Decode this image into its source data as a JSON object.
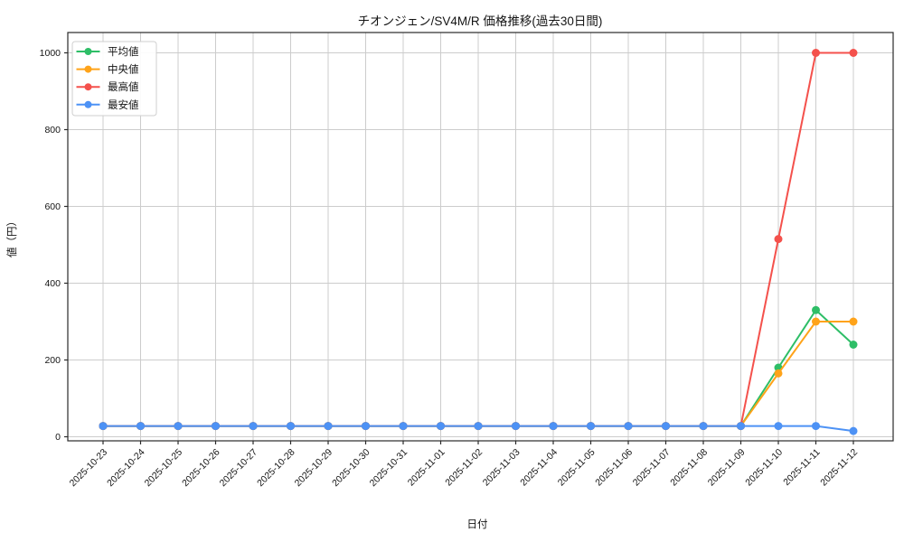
{
  "chart_data": {
    "type": "line",
    "title": "チオンジェン/SV4M/R 価格推移(過去30日間)",
    "xlabel": "日付",
    "ylabel": "値（円）",
    "categories": [
      "2025-10-23",
      "2025-10-24",
      "2025-10-25",
      "2025-10-26",
      "2025-10-27",
      "2025-10-28",
      "2025-10-29",
      "2025-10-30",
      "2025-10-31",
      "2025-11-01",
      "2025-11-02",
      "2025-11-03",
      "2025-11-04",
      "2025-11-05",
      "2025-11-06",
      "2025-11-07",
      "2025-11-08",
      "2025-11-09",
      "2025-11-10",
      "2025-11-11",
      "2025-11-12"
    ],
    "series": [
      {
        "key": "mean",
        "name": "平均値",
        "color": "#2EBE67",
        "values": [
          28,
          28,
          28,
          28,
          28,
          28,
          28,
          28,
          28,
          28,
          28,
          28,
          28,
          28,
          28,
          28,
          28,
          28,
          180,
          330,
          240
        ]
      },
      {
        "key": "median",
        "name": "中央値",
        "color": "#FFA319",
        "values": [
          28,
          28,
          28,
          28,
          28,
          28,
          28,
          28,
          28,
          28,
          28,
          28,
          28,
          28,
          28,
          28,
          28,
          28,
          165,
          300,
          300
        ]
      },
      {
        "key": "max",
        "name": "最高値",
        "color": "#F4514C",
        "values": [
          28,
          28,
          28,
          28,
          28,
          28,
          28,
          28,
          28,
          28,
          28,
          28,
          28,
          28,
          28,
          28,
          28,
          28,
          515,
          1000,
          1000
        ]
      },
      {
        "key": "min",
        "name": "最安値",
        "color": "#4D92F5",
        "values": [
          28,
          28,
          28,
          28,
          28,
          28,
          28,
          28,
          28,
          28,
          28,
          28,
          28,
          28,
          28,
          28,
          28,
          28,
          28,
          28,
          15
        ]
      }
    ],
    "yticks": [
      0,
      200,
      400,
      600,
      800,
      1000
    ],
    "ylim": [
      0,
      1000
    ],
    "grid": true,
    "grid_color": "#cccccc",
    "spine_color": "#2a2a2a",
    "legend_position": "upper left",
    "x_tick_rotation": 45
  }
}
